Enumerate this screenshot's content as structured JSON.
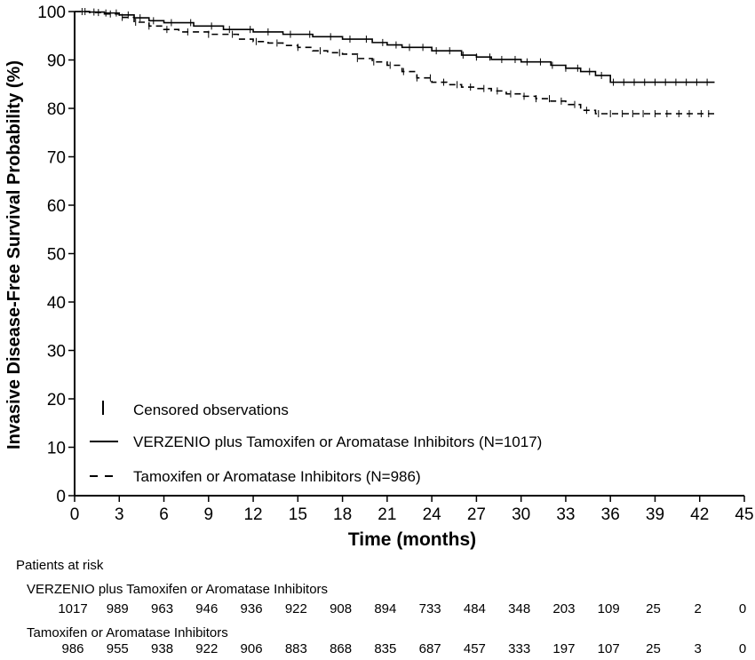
{
  "chart_data": {
    "type": "line",
    "title": "",
    "xlabel": "Time (months)",
    "ylabel": "Invasive Disease-Free Survival Probability (%)",
    "xlim": [
      0,
      45
    ],
    "ylim": [
      0,
      100
    ],
    "xticks": [
      0,
      3,
      6,
      9,
      12,
      15,
      18,
      21,
      24,
      27,
      30,
      33,
      36,
      39,
      42,
      45
    ],
    "yticks": [
      0,
      10,
      20,
      30,
      40,
      50,
      60,
      70,
      80,
      90,
      100
    ],
    "legend": {
      "censored_label": "Censored observations",
      "placement": "bottom-left"
    },
    "series": [
      {
        "name": "VERZENIO plus Tamoxifen or Aromatase Inhibitors (N=1017)",
        "style": "solid",
        "color": "#000000",
        "x": [
          0,
          1,
          2,
          3,
          4,
          5,
          6,
          8,
          10,
          12,
          14,
          16,
          18,
          20,
          21,
          22,
          24,
          26,
          27,
          28,
          30,
          32,
          33,
          34,
          35,
          36,
          38,
          40,
          42,
          43
        ],
        "y": [
          100,
          99.9,
          99.7,
          99.3,
          98.7,
          98.1,
          97.7,
          97.0,
          96.3,
          95.8,
          95.3,
          94.8,
          94.3,
          93.6,
          93.1,
          92.6,
          91.9,
          91.0,
          90.6,
          90.1,
          89.6,
          88.9,
          88.3,
          87.6,
          86.8,
          85.4,
          85.4,
          85.4,
          85.4,
          85.4
        ],
        "censored_x": [
          0.5,
          1.3,
          2.1,
          2.8,
          3.6,
          4.4,
          5.3,
          6.5,
          7.8,
          9.2,
          10.4,
          11.8,
          13.0,
          14.5,
          15.8,
          17.2,
          18.5,
          19.6,
          20.7,
          21.6,
          22.5,
          23.4,
          24.3,
          25.2,
          26.1,
          27.0,
          27.9,
          28.7,
          29.6,
          30.4,
          31.3,
          32.1,
          33.0,
          33.8,
          34.6,
          35.4,
          36.2,
          36.9,
          37.6,
          38.3,
          39.0,
          39.7,
          40.4,
          41.1,
          41.8,
          42.5
        ]
      },
      {
        "name": "Tamoxifen or Aromatase Inhibitors (N=986)",
        "style": "dashed",
        "color": "#000000",
        "x": [
          0,
          1,
          2,
          3,
          4,
          5,
          6,
          7,
          9,
          11,
          12,
          13,
          14,
          15,
          16,
          17,
          18,
          19,
          20,
          21,
          22,
          23,
          24,
          25,
          26,
          27,
          28,
          29,
          30,
          31,
          32,
          33,
          34,
          35,
          36,
          38,
          40,
          42,
          43
        ],
        "y": [
          100,
          99.8,
          99.5,
          98.8,
          97.8,
          97.0,
          96.3,
          95.8,
          95.3,
          94.3,
          93.8,
          93.5,
          93.0,
          92.6,
          91.9,
          91.5,
          91.2,
          90.3,
          89.6,
          88.9,
          87.6,
          86.3,
          85.4,
          84.9,
          84.4,
          84.1,
          83.6,
          83.0,
          82.5,
          82.0,
          81.5,
          80.8,
          79.6,
          78.9,
          78.9,
          78.9,
          78.9,
          78.9,
          78.9
        ],
        "censored_x": [
          0.7,
          1.6,
          2.4,
          3.2,
          4.1,
          5.0,
          6.2,
          7.6,
          9.0,
          10.6,
          12.2,
          13.6,
          15.0,
          16.5,
          17.8,
          19.0,
          20.1,
          21.2,
          22.1,
          23.0,
          23.9,
          24.8,
          25.7,
          26.6,
          27.5,
          28.4,
          29.3,
          30.2,
          31.0,
          31.9,
          32.7,
          33.6,
          34.4,
          35.2,
          36.0,
          36.8,
          37.5,
          38.2,
          39.0,
          39.8,
          40.6,
          41.3,
          42.1,
          42.6
        ]
      }
    ],
    "risk_table": {
      "title": "Patients at risk",
      "times": [
        0,
        3,
        6,
        9,
        12,
        15,
        18,
        21,
        24,
        27,
        30,
        33,
        36,
        39,
        42,
        45
      ],
      "rows": [
        {
          "label": "VERZENIO plus Tamoxifen or Aromatase Inhibitors",
          "values": [
            "1017",
            "989",
            "963",
            "946",
            "936",
            "922",
            "908",
            "894",
            "733",
            "484",
            "348",
            "203",
            "109",
            "25",
            "2",
            "0"
          ]
        },
        {
          "label": "Tamoxifen or Aromatase Inhibitors",
          "values": [
            "986",
            "955",
            "938",
            "922",
            "906",
            "883",
            "868",
            "835",
            "687",
            "457",
            "333",
            "197",
            "107",
            "25",
            "3",
            "0"
          ]
        }
      ]
    }
  }
}
